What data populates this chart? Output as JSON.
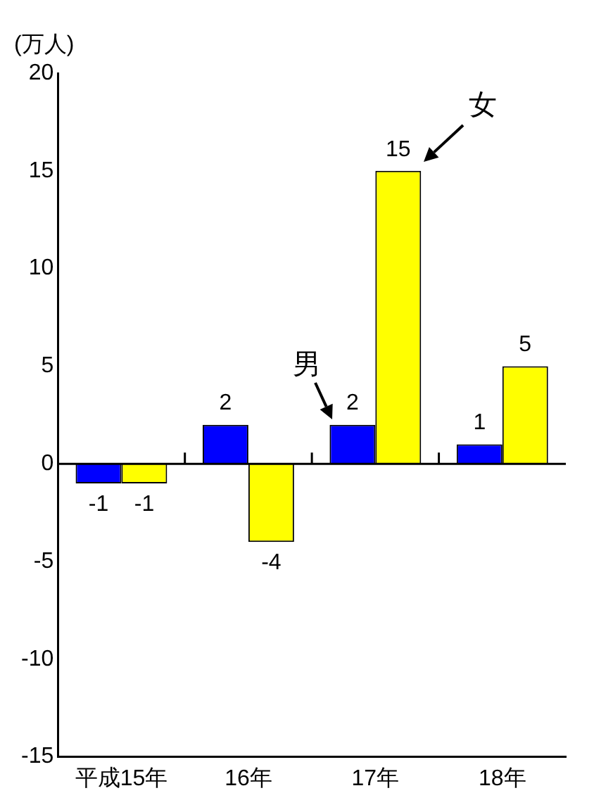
{
  "chart_data": {
    "type": "bar",
    "ylabel": "(万人)",
    "categories": [
      "平成15年",
      "16年",
      "17年",
      "18年"
    ],
    "series": [
      {
        "name": "男",
        "color": "#0000ff",
        "values": [
          -1,
          2,
          2,
          1
        ]
      },
      {
        "name": "女",
        "color": "#ffff00",
        "values": [
          -1,
          -4,
          15,
          5
        ]
      }
    ],
    "ylim": [
      -15,
      20
    ],
    "yticks": [
      -15,
      -10,
      -5,
      0,
      5,
      10,
      15,
      20
    ],
    "grid": false,
    "ref_lines": [
      {
        "axis": "y",
        "value": 0,
        "color": "#000000"
      }
    ],
    "legend": false,
    "data_labels": true
  }
}
